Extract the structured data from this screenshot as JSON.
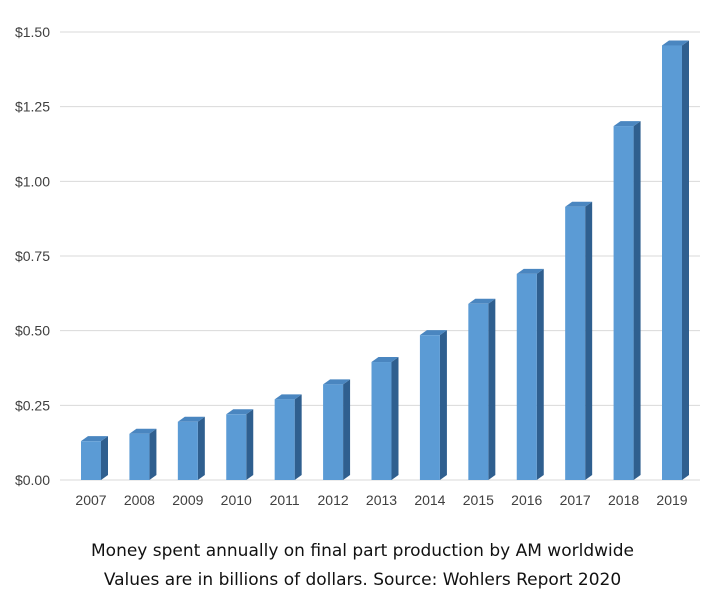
{
  "chart_data": {
    "type": "bar",
    "categories": [
      "2007",
      "2008",
      "2009",
      "2010",
      "2011",
      "2012",
      "2013",
      "2014",
      "2015",
      "2016",
      "2017",
      "2018",
      "2019"
    ],
    "values": [
      0.13,
      0.155,
      0.195,
      0.22,
      0.27,
      0.32,
      0.395,
      0.485,
      0.59,
      0.69,
      0.915,
      1.185,
      1.455
    ],
    "title": "",
    "xlabel": "",
    "ylabel": "",
    "ylim": [
      0,
      1.5
    ],
    "yticks": [
      0,
      0.25,
      0.5,
      0.75,
      1.0,
      1.25,
      1.5
    ],
    "ytick_labels": [
      "$0.00",
      "$0.25",
      "$0.50",
      "$0.75",
      "$1.00",
      "$1.25",
      "$1.50"
    ],
    "grid": true,
    "legend": "none",
    "bar_style": "3d",
    "colors": {
      "front": "#5b9bd5",
      "side": "#2f5f8f",
      "top": "#4a86c0",
      "grid": "#d9d9d9"
    }
  },
  "caption": {
    "line1": "Money spent annually on final part production by AM worldwide",
    "line2": "Values are in billions of dollars. Source: Wohlers Report 2020"
  }
}
